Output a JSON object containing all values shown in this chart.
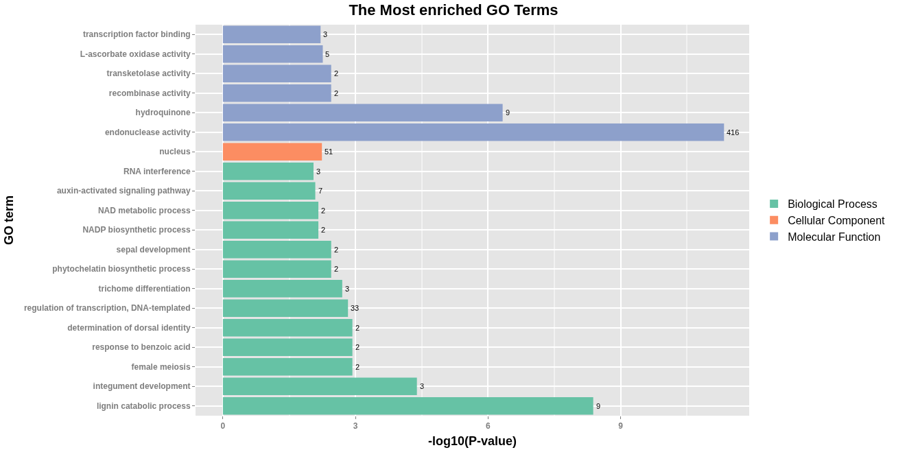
{
  "chart_data": {
    "type": "bar",
    "orientation": "horizontal",
    "title": "The Most enriched GO Terms",
    "xlabel": "-log10(P-value)",
    "ylabel": "GO term",
    "categories": [
      "transcription factor binding",
      "L-ascorbate oxidase activity",
      "transketolase activity",
      "recombinase activity",
      "hydroquinone",
      "endonuclease activity",
      "nucleus",
      "RNA interference",
      "auxin-activated signaling pathway",
      "NAD metabolic process",
      "NADP biosynthetic process",
      "sepal development",
      "phytochelatin biosynthetic process",
      "trichome differentiation",
      "regulation of transcription, DNA-templated",
      "determination of dorsal identity",
      "response to benzoic acid",
      "female meiosis",
      "integument development",
      "lignin catabolic process"
    ],
    "series": [
      {
        "name": "Biological Process",
        "color": "#66c2a5",
        "values": [
          null,
          null,
          null,
          null,
          null,
          null,
          null,
          2.05,
          2.09,
          2.16,
          2.16,
          2.45,
          2.45,
          2.7,
          2.83,
          2.93,
          2.93,
          2.93,
          4.39,
          8.38
        ]
      },
      {
        "name": "Cellular Component",
        "color": "#fc8d62",
        "values": [
          null,
          null,
          null,
          null,
          null,
          null,
          2.24,
          null,
          null,
          null,
          null,
          null,
          null,
          null,
          null,
          null,
          null,
          null,
          null,
          null
        ]
      },
      {
        "name": "Molecular Function",
        "color": "#8da0cb",
        "values": [
          2.21,
          2.26,
          2.45,
          2.45,
          6.33,
          11.34,
          null,
          null,
          null,
          null,
          null,
          null,
          null,
          null,
          null,
          null,
          null,
          null,
          null,
          null
        ]
      }
    ],
    "annotations": [
      {
        "text": "3",
        "x": 2.21,
        "y": "transcription factor binding"
      },
      {
        "text": "5",
        "x": 2.26,
        "y": "L-ascorbate oxidase activity"
      },
      {
        "text": "2",
        "x": 2.45,
        "y": "transketolase activity"
      },
      {
        "text": "2",
        "x": 2.45,
        "y": "recombinase activity"
      },
      {
        "text": "9",
        "x": 6.33,
        "y": "hydroquinone"
      },
      {
        "text": "416",
        "x": 11.34,
        "y": "endonuclease activity"
      },
      {
        "text": "51",
        "x": 2.24,
        "y": "nucleus"
      },
      {
        "text": "3",
        "x": 2.05,
        "y": "RNA interference"
      },
      {
        "text": "7",
        "x": 2.09,
        "y": "auxin-activated signaling pathway"
      },
      {
        "text": "2",
        "x": 2.16,
        "y": "NAD metabolic process"
      },
      {
        "text": "2",
        "x": 2.16,
        "y": "NADP biosynthetic process"
      },
      {
        "text": "2",
        "x": 2.45,
        "y": "sepal development"
      },
      {
        "text": "2",
        "x": 2.45,
        "y": "phytochelatin biosynthetic process"
      },
      {
        "text": "3",
        "x": 2.7,
        "y": "trichome differentiation"
      },
      {
        "text": "33",
        "x": 2.83,
        "y": "regulation of transcription, DNA-templated"
      },
      {
        "text": "2",
        "x": 2.93,
        "y": "determination of dorsal identity"
      },
      {
        "text": "2",
        "x": 2.93,
        "y": "response to benzoic acid"
      },
      {
        "text": "2",
        "x": 2.93,
        "y": "female meiosis"
      },
      {
        "text": "3",
        "x": 4.39,
        "y": "integument development"
      },
      {
        "text": "9",
        "x": 8.38,
        "y": "lignin catabolic process"
      }
    ],
    "xlim": [
      -0.62,
      11.91
    ],
    "xticks": [
      0,
      3,
      6,
      9
    ],
    "grid": true,
    "legend": "right"
  }
}
